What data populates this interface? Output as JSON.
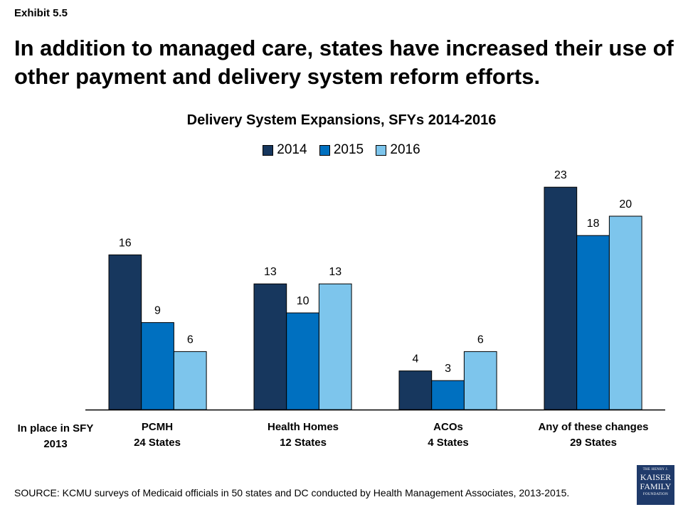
{
  "exhibit": "Exhibit 5.5",
  "headline": "In addition to managed care, states have increased their use of other payment and delivery system reform efforts.",
  "row_label": "In place in SFY 2013",
  "source": "SOURCE: KCMU surveys of Medicaid officials in 50 states and DC conducted by Health Management Associates, 2013-2015.",
  "logo": {
    "line1": "THE HENRY J.",
    "line2": "KAISER",
    "line3": "FAMILY",
    "line4": "FOUNDATION"
  },
  "chart_data": {
    "type": "bar",
    "title": "Delivery System Expansions, SFYs 2014-2016",
    "xlabel": "",
    "ylabel": "",
    "ylim": [
      0,
      25
    ],
    "grid": false,
    "legend_position": "top-center",
    "categories": [
      "PCMH",
      "Health Homes",
      "ACOs",
      "Any of these changes"
    ],
    "category_sublabels": [
      "24 States",
      "12 States",
      "4 States",
      "29 States"
    ],
    "series": [
      {
        "name": "2014",
        "color": "#17375e",
        "values": [
          16,
          13,
          4,
          23
        ]
      },
      {
        "name": "2015",
        "color": "#0070c0",
        "values": [
          9,
          10,
          3,
          18
        ]
      },
      {
        "name": "2016",
        "color": "#7dc5ec",
        "values": [
          6,
          13,
          6,
          20
        ]
      }
    ]
  }
}
